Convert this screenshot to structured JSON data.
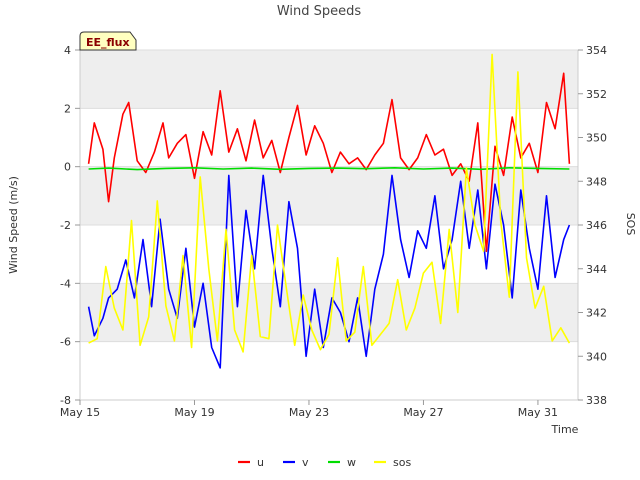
{
  "chart_data": {
    "type": "line",
    "title": "Wind Speeds",
    "badge": "EE_flux",
    "xlabel": "Time",
    "ylabel": "Wind Speed (m/s)",
    "y2label": "SOS",
    "x_range_days": [
      0,
      17.4
    ],
    "ylim": [
      -8,
      4
    ],
    "y2lim": [
      338,
      354
    ],
    "x_ticks": [
      {
        "day": 0,
        "label": "May 15"
      },
      {
        "day": 4,
        "label": "May 19"
      },
      {
        "day": 8,
        "label": "May 23"
      },
      {
        "day": 12,
        "label": "May 27"
      },
      {
        "day": 16,
        "label": "May 31"
      }
    ],
    "y_ticks": [
      {
        "value": -8,
        "label": "-8"
      },
      {
        "value": -6,
        "label": "-6"
      },
      {
        "value": -4,
        "label": "-4"
      },
      {
        "value": -2,
        "label": "-2"
      },
      {
        "value": 0,
        "label": "0"
      },
      {
        "value": 2,
        "label": "2"
      },
      {
        "value": 4,
        "label": "4"
      }
    ],
    "y2_ticks": [
      {
        "value": 338,
        "label": "338"
      },
      {
        "value": 340,
        "label": "340"
      },
      {
        "value": 342,
        "label": "342"
      },
      {
        "value": 344,
        "label": "344"
      },
      {
        "value": 346,
        "label": "346"
      },
      {
        "value": 348,
        "label": "348"
      },
      {
        "value": 350,
        "label": "350"
      },
      {
        "value": 352,
        "label": "352"
      },
      {
        "value": 354,
        "label": "354"
      }
    ],
    "band_fill": "#eeeeee",
    "series": [
      {
        "name": "u",
        "color": "#ff0000",
        "axis": "left",
        "x": [
          0.3,
          0.5,
          0.8,
          1.0,
          1.2,
          1.5,
          1.7,
          2.0,
          2.3,
          2.6,
          2.9,
          3.1,
          3.4,
          3.7,
          4.0,
          4.3,
          4.6,
          4.9,
          5.2,
          5.5,
          5.8,
          6.1,
          6.4,
          6.7,
          7.0,
          7.3,
          7.6,
          7.9,
          8.2,
          8.5,
          8.8,
          9.1,
          9.4,
          9.7,
          10.0,
          10.3,
          10.6,
          10.9,
          11.2,
          11.5,
          11.8,
          12.1,
          12.4,
          12.7,
          13.0,
          13.3,
          13.6,
          13.9,
          14.2,
          14.5,
          14.8,
          15.1,
          15.4,
          15.7,
          16.0,
          16.3,
          16.6,
          16.9,
          17.1
        ],
        "values": [
          0.1,
          1.5,
          0.6,
          -1.2,
          0.3,
          1.8,
          2.2,
          0.2,
          -0.2,
          0.5,
          1.5,
          0.3,
          0.8,
          1.1,
          -0.4,
          1.2,
          0.4,
          2.6,
          0.5,
          1.3,
          0.2,
          1.6,
          0.3,
          0.9,
          -0.2,
          1.0,
          2.1,
          0.4,
          1.4,
          0.8,
          -0.2,
          0.5,
          0.1,
          0.3,
          -0.1,
          0.4,
          0.8,
          2.3,
          0.3,
          -0.1,
          0.3,
          1.1,
          0.4,
          0.6,
          -0.3,
          0.1,
          -0.5,
          1.5,
          -2.9,
          0.7,
          -0.3,
          1.7,
          0.3,
          0.8,
          -0.2,
          2.2,
          1.3,
          3.2,
          0.1
        ]
      },
      {
        "name": "v",
        "color": "#0000ff",
        "axis": "left",
        "x": [
          0.3,
          0.5,
          0.8,
          1.0,
          1.3,
          1.6,
          1.9,
          2.2,
          2.5,
          2.8,
          3.1,
          3.4,
          3.7,
          4.0,
          4.3,
          4.6,
          4.9,
          5.2,
          5.5,
          5.8,
          6.1,
          6.4,
          6.7,
          7.0,
          7.3,
          7.6,
          7.9,
          8.2,
          8.5,
          8.8,
          9.1,
          9.4,
          9.7,
          10.0,
          10.3,
          10.6,
          10.9,
          11.2,
          11.5,
          11.8,
          12.1,
          12.4,
          12.7,
          13.0,
          13.3,
          13.6,
          13.9,
          14.2,
          14.5,
          14.8,
          15.1,
          15.4,
          15.7,
          16.0,
          16.3,
          16.6,
          16.9,
          17.1
        ],
        "values": [
          -4.8,
          -5.8,
          -5.2,
          -4.5,
          -4.2,
          -3.2,
          -4.5,
          -2.5,
          -4.8,
          -1.8,
          -4.2,
          -5.2,
          -2.8,
          -5.5,
          -4.0,
          -6.2,
          -6.9,
          -0.3,
          -4.8,
          -1.5,
          -3.5,
          -0.3,
          -2.8,
          -4.8,
          -1.2,
          -2.8,
          -6.5,
          -4.2,
          -6.2,
          -4.5,
          -5.0,
          -6.0,
          -4.5,
          -6.5,
          -4.2,
          -3.0,
          -0.3,
          -2.5,
          -3.8,
          -2.2,
          -2.8,
          -1.0,
          -3.5,
          -2.5,
          -0.5,
          -2.8,
          -0.8,
          -3.5,
          -0.6,
          -2.0,
          -4.5,
          -0.8,
          -2.8,
          -4.2,
          -1.0,
          -3.8,
          -2.5,
          -2.0
        ]
      },
      {
        "name": "w",
        "color": "#00dd00",
        "axis": "left",
        "x": [
          0.3,
          1.0,
          2.0,
          3.0,
          4.0,
          5.0,
          6.0,
          7.0,
          8.0,
          9.0,
          10.0,
          11.0,
          12.0,
          13.0,
          14.0,
          15.0,
          16.0,
          17.1
        ],
        "values": [
          -0.08,
          -0.05,
          -0.1,
          -0.06,
          -0.04,
          -0.08,
          -0.05,
          -0.09,
          -0.06,
          -0.05,
          -0.07,
          -0.04,
          -0.08,
          -0.05,
          -0.09,
          -0.04,
          -0.06,
          -0.08
        ]
      },
      {
        "name": "sos",
        "color": "#ffff00",
        "axis": "right",
        "x": [
          0.3,
          0.6,
          0.9,
          1.2,
          1.5,
          1.8,
          2.1,
          2.4,
          2.7,
          3.0,
          3.3,
          3.6,
          3.9,
          4.2,
          4.5,
          4.8,
          5.1,
          5.4,
          5.7,
          6.0,
          6.3,
          6.6,
          6.9,
          7.2,
          7.5,
          7.8,
          8.1,
          8.4,
          8.7,
          9.0,
          9.3,
          9.6,
          9.9,
          10.2,
          10.5,
          10.8,
          11.1,
          11.4,
          11.7,
          12.0,
          12.3,
          12.6,
          12.9,
          13.2,
          13.5,
          13.8,
          14.1,
          14.4,
          14.7,
          15.0,
          15.3,
          15.6,
          15.9,
          16.2,
          16.5,
          16.8,
          17.1
        ],
        "values": [
          340.6,
          340.8,
          344.1,
          342.2,
          341.2,
          346.2,
          340.5,
          341.8,
          347.1,
          342.3,
          340.7,
          344.6,
          340.4,
          348.2,
          344.0,
          340.7,
          345.8,
          341.2,
          340.2,
          344.6,
          340.9,
          340.8,
          346.0,
          343.2,
          340.5,
          342.8,
          341.2,
          340.3,
          341.0,
          344.5,
          340.7,
          341.1,
          344.1,
          340.5,
          341.0,
          341.5,
          343.5,
          341.2,
          342.2,
          343.8,
          344.3,
          341.5,
          345.8,
          342.0,
          348.6,
          346.0,
          344.8,
          353.8,
          346.2,
          342.7,
          353.0,
          344.5,
          342.2,
          343.2,
          340.7,
          341.3,
          340.6
        ]
      }
    ]
  }
}
